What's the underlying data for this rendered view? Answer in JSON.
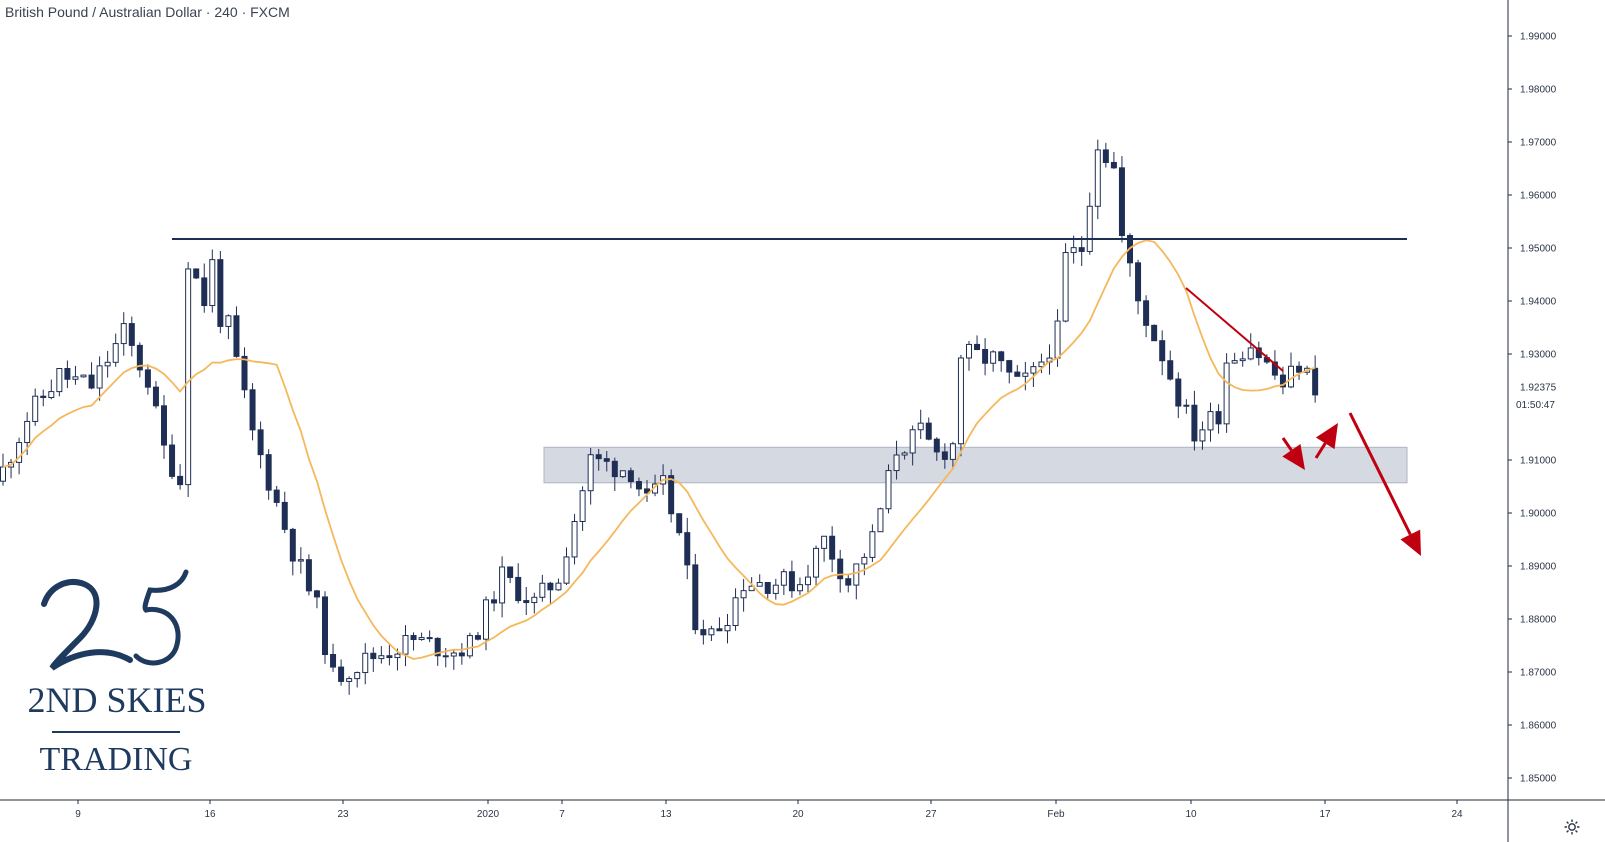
{
  "chart_data": {
    "type": "candlestick",
    "title": "British Pound / Australian Dollar · 240 · FXCM",
    "instrument": "British Pound / Australian Dollar",
    "timeframe": "240",
    "source": "FXCM",
    "y_ticks": [
      "1.99000",
      "1.98000",
      "1.97000",
      "1.96000",
      "1.95000",
      "1.94000",
      "1.93000",
      "1.91000",
      "1.90000",
      "1.89000",
      "1.88000",
      "1.87000",
      "1.86000",
      "1.85000"
    ],
    "ylim": [
      1.8427,
      1.9929
    ],
    "x_ticks": [
      "9",
      "16",
      "23",
      "2020",
      "7",
      "13",
      "20",
      "27",
      "Feb",
      "10",
      "17",
      "24"
    ],
    "current_price": "1.92375",
    "countdown": "01:50:47",
    "ma_color": "#f5b85c",
    "bull_color": "#ffffff",
    "bear_color": "#1f2e54",
    "resistance_level": 1.9517,
    "support_zone": [
      1.9057,
      1.9124
    ],
    "annotation_color": "#c00010",
    "path_anchors": [
      [
        0,
        1.908
      ],
      [
        3,
        1.918
      ],
      [
        7,
        1.926
      ],
      [
        11,
        1.924
      ],
      [
        15,
        1.934
      ],
      [
        18,
        1.925
      ],
      [
        20,
        1.912
      ],
      [
        22,
        1.906
      ],
      [
        23,
        1.948
      ],
      [
        25,
        1.94
      ],
      [
        26,
        1.947
      ],
      [
        27,
        1.937
      ],
      [
        28,
        1.935
      ],
      [
        31,
        1.915
      ],
      [
        36,
        1.893
      ],
      [
        39,
        1.882
      ],
      [
        41,
        1.869
      ],
      [
        46,
        1.873
      ],
      [
        51,
        1.876
      ],
      [
        56,
        1.874
      ],
      [
        58,
        1.875
      ],
      [
        62,
        1.888
      ],
      [
        66,
        1.883
      ],
      [
        69,
        1.888
      ],
      [
        73,
        1.91
      ],
      [
        78,
        1.908
      ],
      [
        80,
        1.902
      ],
      [
        82,
        1.905
      ],
      [
        84,
        1.896
      ],
      [
        86,
        1.88
      ],
      [
        88,
        1.877
      ],
      [
        90,
        1.881
      ],
      [
        92,
        1.887
      ],
      [
        95,
        1.887
      ],
      [
        99,
        1.887
      ],
      [
        102,
        1.895
      ],
      [
        105,
        1.887
      ],
      [
        108,
        1.895
      ],
      [
        111,
        1.912
      ],
      [
        114,
        1.915
      ],
      [
        116,
        1.911
      ],
      [
        118,
        1.913
      ],
      [
        119,
        1.93
      ],
      [
        123,
        1.929
      ],
      [
        126,
        1.924
      ],
      [
        128,
        1.926
      ],
      [
        131,
        1.934
      ],
      [
        132,
        1.948
      ],
      [
        134,
        1.95
      ],
      [
        135,
        1.96
      ],
      [
        136,
        1.97
      ],
      [
        138,
        1.965
      ],
      [
        139,
        1.952
      ],
      [
        141,
        1.94
      ],
      [
        144,
        1.93
      ],
      [
        146,
        1.922
      ],
      [
        148,
        1.915
      ],
      [
        151,
        1.919
      ],
      [
        152,
        1.929
      ],
      [
        155,
        1.932
      ],
      [
        157,
        1.928
      ],
      [
        159,
        1.924
      ],
      [
        161,
        1.928
      ],
      [
        163,
        1.924
      ]
    ]
  },
  "logo": {
    "line1": "2ND SKIES",
    "line2": "TRADING"
  },
  "ui": {
    "settings_icon": "gear-icon"
  }
}
